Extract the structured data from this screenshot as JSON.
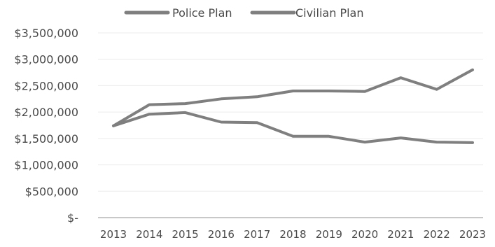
{
  "chart_data": {
    "type": "line",
    "title": "",
    "xlabel": "",
    "ylabel": "",
    "categories": [
      "2013",
      "2014",
      "2015",
      "2016",
      "2017",
      "2018",
      "2019",
      "2020",
      "2021",
      "2022",
      "2023"
    ],
    "y_tick_values": [
      0,
      500000,
      1000000,
      1500000,
      2000000,
      2500000,
      3000000,
      3500000
    ],
    "y_tick_labels": [
      "$-",
      "$500,000",
      "$1,000,000",
      "$1,500,000",
      "$2,000,000",
      "$2,500,000",
      "$3,000,000",
      "$3,500,000"
    ],
    "ylim": [
      0,
      3500000
    ],
    "grid": true,
    "legend_position": "top",
    "series": [
      {
        "name": "Police Plan",
        "color": "#7f7f7f",
        "values": [
          1740000,
          1960000,
          1990000,
          1810000,
          1800000,
          1540000,
          1540000,
          1430000,
          1510000,
          1430000,
          1420000
        ]
      },
      {
        "name": "Civilian Plan",
        "color": "#7f7f7f",
        "values": [
          1740000,
          2140000,
          2160000,
          2250000,
          2290000,
          2400000,
          2400000,
          2390000,
          2650000,
          2430000,
          2800000
        ]
      }
    ]
  }
}
